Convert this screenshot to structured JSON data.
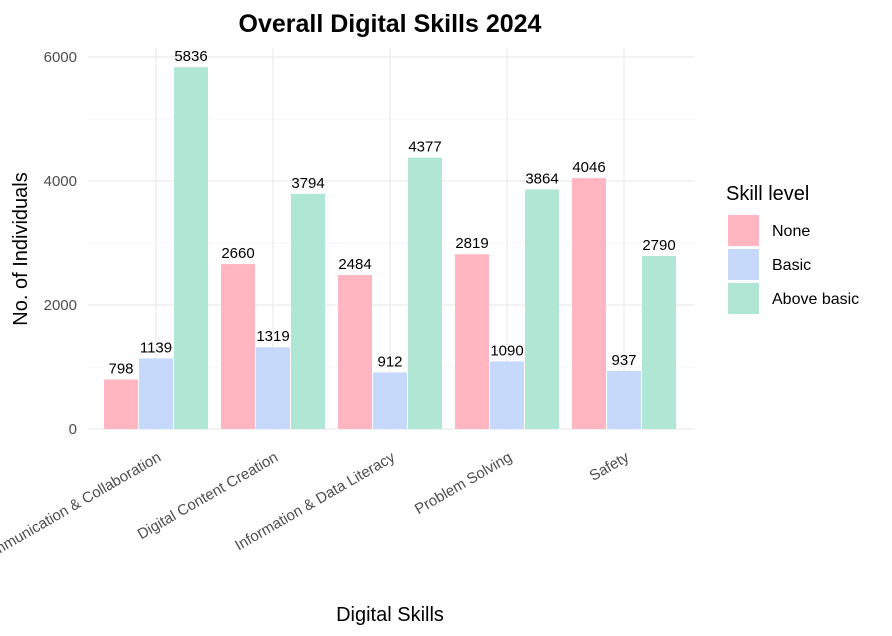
{
  "chart_data": {
    "type": "bar",
    "title": "Overall Digital Skills 2024",
    "xlabel": "Digital Skills",
    "ylabel": "No. of Individuals",
    "categories": [
      "Communication & Collaboration",
      "Digital Content Creation",
      "Information & Data Literacy",
      "Problem Solving",
      "Safety"
    ],
    "series": [
      {
        "name": "None",
        "color": "#ffb6c1",
        "values": [
          798,
          2660,
          2484,
          2819,
          4046
        ]
      },
      {
        "name": "Basic",
        "color": "#c6d9fb",
        "values": [
          1139,
          1319,
          912,
          1090,
          937
        ]
      },
      {
        "name": "Above basic",
        "color": "#b0e6d4",
        "values": [
          5836,
          3794,
          4377,
          3864,
          2790
        ]
      }
    ],
    "ylim": [
      0,
      6000
    ],
    "yticks": [
      "0",
      "2000",
      "4000",
      "6000"
    ],
    "ytick_values": [
      0,
      2000,
      4000,
      6000
    ],
    "grid": true,
    "legend": {
      "title": "Skill level",
      "placement": "right"
    }
  }
}
